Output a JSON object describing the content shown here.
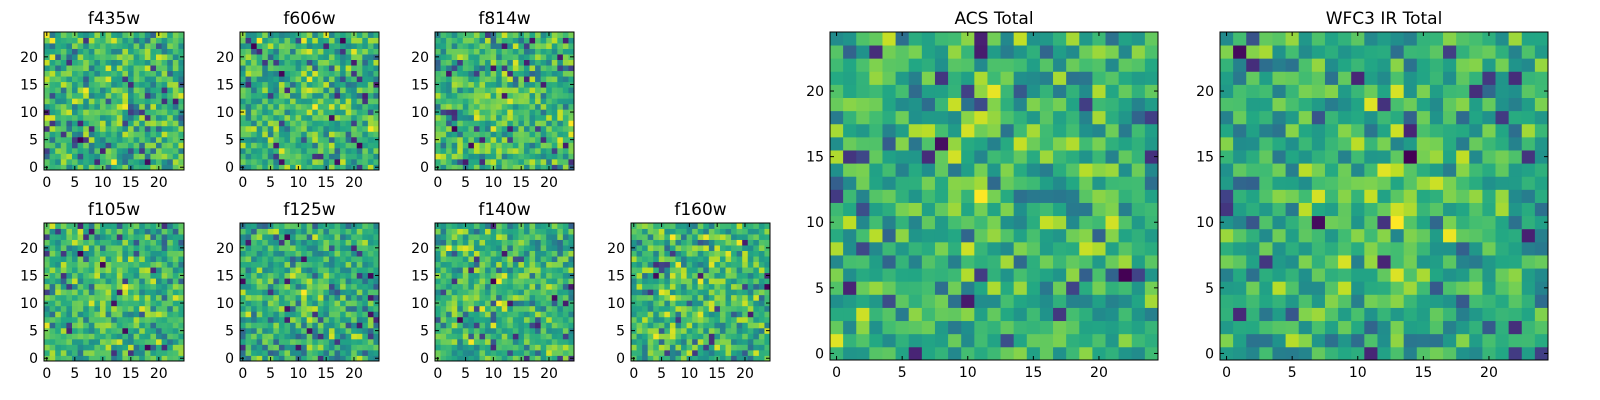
{
  "chart_data": [
    {
      "type": "heatmap",
      "title": "f435w",
      "grid": false,
      "xlim": [
        -0.5,
        24.5
      ],
      "ylim": [
        -0.5,
        24.5
      ],
      "xticks": [
        0,
        5,
        10,
        15,
        20
      ],
      "yticks": [
        0,
        5,
        10,
        15,
        20
      ],
      "colormap": "viridis",
      "seed": 11,
      "n": 25,
      "blob": 0.2
    },
    {
      "type": "heatmap",
      "title": "f606w",
      "grid": false,
      "xlim": [
        -0.5,
        24.5
      ],
      "ylim": [
        -0.5,
        24.5
      ],
      "xticks": [
        0,
        5,
        10,
        15,
        20
      ],
      "yticks": [
        0,
        5,
        10,
        15,
        20
      ],
      "colormap": "viridis",
      "seed": 23,
      "n": 25,
      "blob": 0.5
    },
    {
      "type": "heatmap",
      "title": "f814w",
      "grid": false,
      "xlim": [
        -0.5,
        24.5
      ],
      "ylim": [
        -0.5,
        24.5
      ],
      "xticks": [
        0,
        5,
        10,
        15,
        20
      ],
      "yticks": [
        0,
        5,
        10,
        15,
        20
      ],
      "colormap": "viridis",
      "seed": 37,
      "n": 25,
      "blob": 0.6
    },
    {
      "type": "heatmap",
      "title": "f105w",
      "grid": false,
      "xlim": [
        -0.5,
        24.5
      ],
      "ylim": [
        -0.5,
        24.5
      ],
      "xticks": [
        0,
        5,
        10,
        15,
        20
      ],
      "yticks": [
        0,
        5,
        10,
        15,
        20
      ],
      "colormap": "viridis",
      "seed": 41,
      "n": 25,
      "blob": 0.8
    },
    {
      "type": "heatmap",
      "title": "f125w",
      "grid": false,
      "xlim": [
        -0.5,
        24.5
      ],
      "ylim": [
        -0.5,
        24.5
      ],
      "xticks": [
        0,
        5,
        10,
        15,
        20
      ],
      "yticks": [
        0,
        5,
        10,
        15,
        20
      ],
      "colormap": "viridis",
      "seed": 53,
      "n": 25,
      "blob": 0.4
    },
    {
      "type": "heatmap",
      "title": "f140w",
      "grid": false,
      "xlim": [
        -0.5,
        24.5
      ],
      "ylim": [
        -0.5,
        24.5
      ],
      "xticks": [
        0,
        5,
        10,
        15,
        20
      ],
      "yticks": [
        0,
        5,
        10,
        15,
        20
      ],
      "colormap": "viridis",
      "seed": 67,
      "n": 25,
      "blob": 0.5
    },
    {
      "type": "heatmap",
      "title": "f160w",
      "grid": false,
      "xlim": [
        -0.5,
        24.5
      ],
      "ylim": [
        -0.5,
        24.5
      ],
      "xticks": [
        0,
        5,
        10,
        15,
        20
      ],
      "yticks": [
        0,
        5,
        10,
        15,
        20
      ],
      "colormap": "viridis",
      "seed": 79,
      "n": 25,
      "blob": 0.4
    },
    {
      "type": "heatmap",
      "title": "ACS Total",
      "grid": false,
      "xlim": [
        -0.5,
        24.5
      ],
      "ylim": [
        -0.5,
        24.5
      ],
      "xticks": [
        0,
        5,
        10,
        15,
        20
      ],
      "yticks": [
        0,
        5,
        10,
        15,
        20
      ],
      "colormap": "viridis",
      "seed": 97,
      "n": 25,
      "blob": 0.6
    },
    {
      "type": "heatmap",
      "title": "WFC3 IR Total",
      "grid": false,
      "xlim": [
        -0.5,
        24.5
      ],
      "ylim": [
        -0.5,
        24.5
      ],
      "xticks": [
        0,
        5,
        10,
        15,
        20
      ],
      "yticks": [
        0,
        5,
        10,
        15,
        20
      ],
      "colormap": "viridis",
      "seed": 131,
      "n": 25,
      "blob": 1.0
    }
  ]
}
